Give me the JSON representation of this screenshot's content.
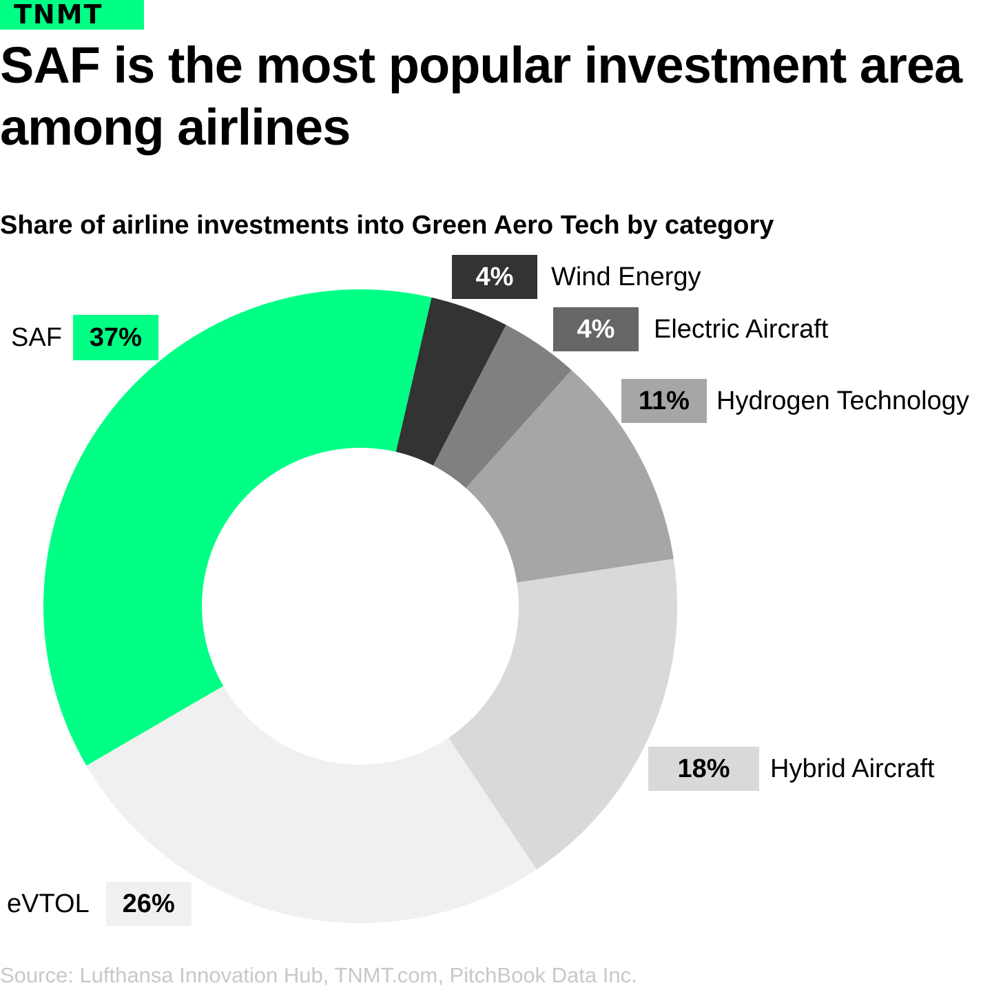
{
  "logo": {
    "text": "TNMT",
    "color": "#00ff85"
  },
  "title": "SAF is the most popular investment area among airlines",
  "subtitle": "Share of airline investments into Green Aero Tech by category",
  "source": "Source: Lufthansa Innovation Hub, TNMT.com, PitchBook Data Inc.",
  "labels": {
    "wind": {
      "pct": "4%",
      "name": "Wind Energy"
    },
    "electric": {
      "pct": "4%",
      "name": "Electric Aircraft"
    },
    "hydrogen": {
      "pct": "11%",
      "name": "Hydrogen Technology"
    },
    "hybrid": {
      "pct": "18%",
      "name": "Hybrid Aircraft"
    },
    "evtol": {
      "pct": "26%",
      "name": "eVTOL"
    },
    "saf": {
      "pct": "37%",
      "name": "SAF"
    }
  },
  "chart_data": {
    "type": "pie",
    "donut": true,
    "title": "Share of airline investments into Green Aero Tech by category",
    "categories": [
      "Wind Energy",
      "Electric Aircraft",
      "Hydrogen Technology",
      "Hybrid Aircraft",
      "eVTOL",
      "SAF"
    ],
    "values": [
      4,
      4,
      11,
      18,
      26,
      37
    ],
    "unit": "%",
    "colors": [
      "#333333",
      "#808080",
      "#a6a6a6",
      "#d9d9d9",
      "#f0f0f0",
      "#00ff85"
    ]
  }
}
